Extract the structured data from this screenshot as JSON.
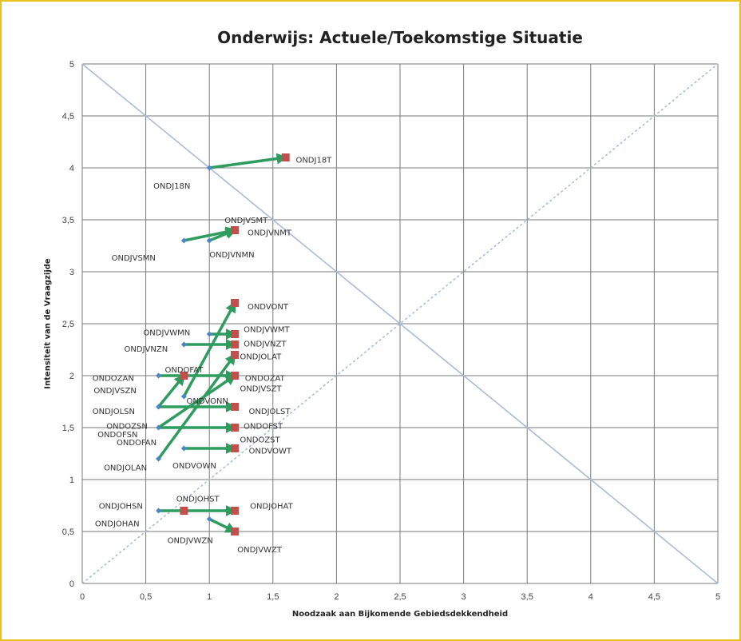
{
  "chart_data": {
    "type": "scatter",
    "title": "Onderwijs: Actuele/Toekomstige Situatie",
    "xlabel": "Noodzaak aan Bijkomende Gebiedsdekkendheid",
    "ylabel": "Intensiteit van de Vraagzijde",
    "xlim": [
      0,
      5
    ],
    "ylim": [
      0,
      5
    ],
    "xticks": [
      "0",
      "0,5",
      "1",
      "1,5",
      "2",
      "2,5",
      "3",
      "3,5",
      "4",
      "4,5",
      "5"
    ],
    "yticks": [
      "0",
      "0,5",
      "1",
      "1,5",
      "2",
      "2,5",
      "3",
      "3,5",
      "4",
      "4,5",
      "5"
    ],
    "grid": true,
    "reference_lines": [
      {
        "style": "solid",
        "from": [
          0,
          5
        ],
        "to": [
          5,
          0
        ]
      },
      {
        "style": "dotted",
        "from": [
          0,
          0
        ],
        "to": [
          5,
          5
        ]
      }
    ],
    "colors": {
      "current": "#4a86c5",
      "future": "#c0504d",
      "arrow": "#2e9c5e",
      "grid": "#7a7a7a",
      "diagonal": "#a9bcd8"
    },
    "arrows": [
      {
        "from": [
          1.0,
          4.0
        ],
        "to": [
          1.6,
          4.1
        ]
      },
      {
        "from": [
          0.8,
          3.3
        ],
        "to": [
          1.2,
          3.4
        ]
      },
      {
        "from": [
          1.0,
          3.3
        ],
        "to": [
          1.2,
          3.4
        ]
      },
      {
        "from": [
          0.8,
          1.8
        ],
        "to": [
          1.2,
          2.7
        ]
      },
      {
        "from": [
          1.0,
          2.4
        ],
        "to": [
          1.2,
          2.4
        ]
      },
      {
        "from": [
          0.8,
          2.3
        ],
        "to": [
          1.2,
          2.3
        ]
      },
      {
        "from": [
          0.6,
          1.2
        ],
        "to": [
          1.2,
          2.2
        ]
      },
      {
        "from": [
          0.6,
          2.0
        ],
        "to": [
          1.2,
          2.0
        ]
      },
      {
        "from": [
          0.6,
          1.5
        ],
        "to": [
          1.2,
          2.0
        ]
      },
      {
        "from": [
          0.6,
          1.7
        ],
        "to": [
          0.8,
          2.0
        ]
      },
      {
        "from": [
          0.6,
          1.7
        ],
        "to": [
          1.2,
          1.7
        ]
      },
      {
        "from": [
          0.6,
          1.5
        ],
        "to": [
          1.2,
          1.5
        ]
      },
      {
        "from": [
          0.8,
          1.3
        ],
        "to": [
          1.2,
          1.3
        ]
      },
      {
        "from": [
          0.6,
          0.7
        ],
        "to": [
          1.2,
          0.7
        ]
      },
      {
        "from": [
          1.0,
          0.62
        ],
        "to": [
          1.2,
          0.5
        ]
      }
    ],
    "current_points": [
      {
        "x": 1.0,
        "y": 4.0
      },
      {
        "x": 0.8,
        "y": 3.3
      },
      {
        "x": 1.0,
        "y": 3.3
      },
      {
        "x": 1.0,
        "y": 2.4
      },
      {
        "x": 0.8,
        "y": 2.3
      },
      {
        "x": 0.6,
        "y": 2.0
      },
      {
        "x": 0.8,
        "y": 1.8
      },
      {
        "x": 0.6,
        "y": 1.7
      },
      {
        "x": 0.6,
        "y": 1.5
      },
      {
        "x": 0.8,
        "y": 1.3
      },
      {
        "x": 0.6,
        "y": 1.2
      },
      {
        "x": 0.6,
        "y": 0.7
      },
      {
        "x": 1.0,
        "y": 0.62
      }
    ],
    "future_points": [
      {
        "x": 1.6,
        "y": 4.1
      },
      {
        "x": 1.2,
        "y": 3.4
      },
      {
        "x": 1.2,
        "y": 2.7
      },
      {
        "x": 1.2,
        "y": 2.4
      },
      {
        "x": 1.2,
        "y": 2.3
      },
      {
        "x": 1.2,
        "y": 2.2
      },
      {
        "x": 1.2,
        "y": 2.0
      },
      {
        "x": 0.8,
        "y": 2.0
      },
      {
        "x": 1.2,
        "y": 1.7
      },
      {
        "x": 1.2,
        "y": 1.5
      },
      {
        "x": 1.2,
        "y": 1.3
      },
      {
        "x": 0.8,
        "y": 0.7
      },
      {
        "x": 1.2,
        "y": 0.7
      },
      {
        "x": 1.2,
        "y": 0.5
      }
    ],
    "point_labels": [
      {
        "text": "ONDJ18T",
        "x": 1.68,
        "y": 4.08
      },
      {
        "text": "ONDJ18N",
        "x": 0.56,
        "y": 3.83
      },
      {
        "text": "ONDJVSMT",
        "x": 1.12,
        "y": 3.5
      },
      {
        "text": "ONDJVNMT",
        "x": 1.3,
        "y": 3.38
      },
      {
        "text": "ONDJVSMN",
        "x": 0.23,
        "y": 3.14
      },
      {
        "text": "ONDJVNMN",
        "x": 1.0,
        "y": 3.17
      },
      {
        "text": "ONDVONT",
        "x": 1.3,
        "y": 2.67
      },
      {
        "text": "ONDJVWMN",
        "x": 0.48,
        "y": 2.42
      },
      {
        "text": "ONDJVWMT",
        "x": 1.27,
        "y": 2.45
      },
      {
        "text": "ONDJVNZN",
        "x": 0.33,
        "y": 2.26
      },
      {
        "text": "ONDJVNZT",
        "x": 1.27,
        "y": 2.31
      },
      {
        "text": "ONDJOLAT",
        "x": 1.24,
        "y": 2.19
      },
      {
        "text": "ONDOFAT",
        "x": 0.65,
        "y": 2.06
      },
      {
        "text": "ONDOZAN",
        "x": 0.08,
        "y": 1.98
      },
      {
        "text": "ONDOZAT",
        "x": 1.28,
        "y": 1.98
      },
      {
        "text": "ONDJVSZN",
        "x": 0.09,
        "y": 1.86
      },
      {
        "text": "ONDJVSZT",
        "x": 1.24,
        "y": 1.88
      },
      {
        "text": "ONDVONN",
        "x": 0.82,
        "y": 1.76
      },
      {
        "text": "ONDJOLSN",
        "x": 0.08,
        "y": 1.66
      },
      {
        "text": "ONDJOLST",
        "x": 1.31,
        "y": 1.66
      },
      {
        "text": "ONDOZSN",
        "x": 0.19,
        "y": 1.52
      },
      {
        "text": "ONDOFST",
        "x": 1.27,
        "y": 1.52
      },
      {
        "text": "ONDOFSN",
        "x": 0.12,
        "y": 1.44
      },
      {
        "text": "ONDOZST",
        "x": 1.24,
        "y": 1.39
      },
      {
        "text": "ONDOFAN",
        "x": 0.27,
        "y": 1.36
      },
      {
        "text": "ONDVOWT",
        "x": 1.31,
        "y": 1.28
      },
      {
        "text": "ONDVOWN",
        "x": 0.71,
        "y": 1.14
      },
      {
        "text": "ONDJOLAN",
        "x": 0.17,
        "y": 1.12
      },
      {
        "text": "ONDJOHSN",
        "x": 0.13,
        "y": 0.75
      },
      {
        "text": "ONDJOHST",
        "x": 0.74,
        "y": 0.82
      },
      {
        "text": "ONDJOHAT",
        "x": 1.32,
        "y": 0.75
      },
      {
        "text": "ONDJOHAN",
        "x": 0.1,
        "y": 0.58
      },
      {
        "text": "ONDJVWZN",
        "x": 0.67,
        "y": 0.42
      },
      {
        "text": "ONDJVWZT",
        "x": 1.22,
        "y": 0.33
      }
    ]
  }
}
